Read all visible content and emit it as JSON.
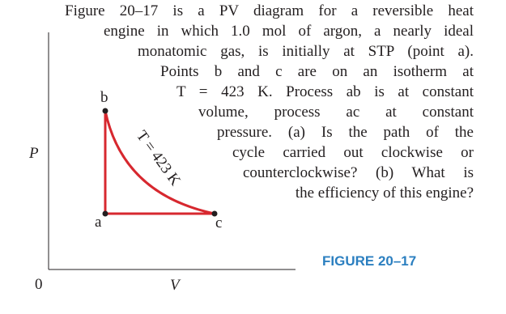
{
  "text": {
    "lines": [
      "Figure 20–17 is a PV diagram for a reversible heat",
      "engine in which 1.0 mol of argon, a nearly ideal",
      "monatomic gas, is initially at STP (point a).",
      "Points b and c are on an isotherm at",
      "T = 423 K. Process ab is at constant",
      "volume, process ac at constant",
      "pressure. (a) Is the path of the",
      "cycle carried out clockwise or",
      "counterclockwise? (b) What is",
      "the efficiency of this engine?"
    ]
  },
  "diagram": {
    "y_axis_label": "P",
    "x_axis_label": "V",
    "origin_label": "0",
    "point_a": "a",
    "point_b": "b",
    "point_c": "c",
    "isotherm_label": "T = 423 K"
  },
  "figure_label": "FIGURE 20–17"
}
